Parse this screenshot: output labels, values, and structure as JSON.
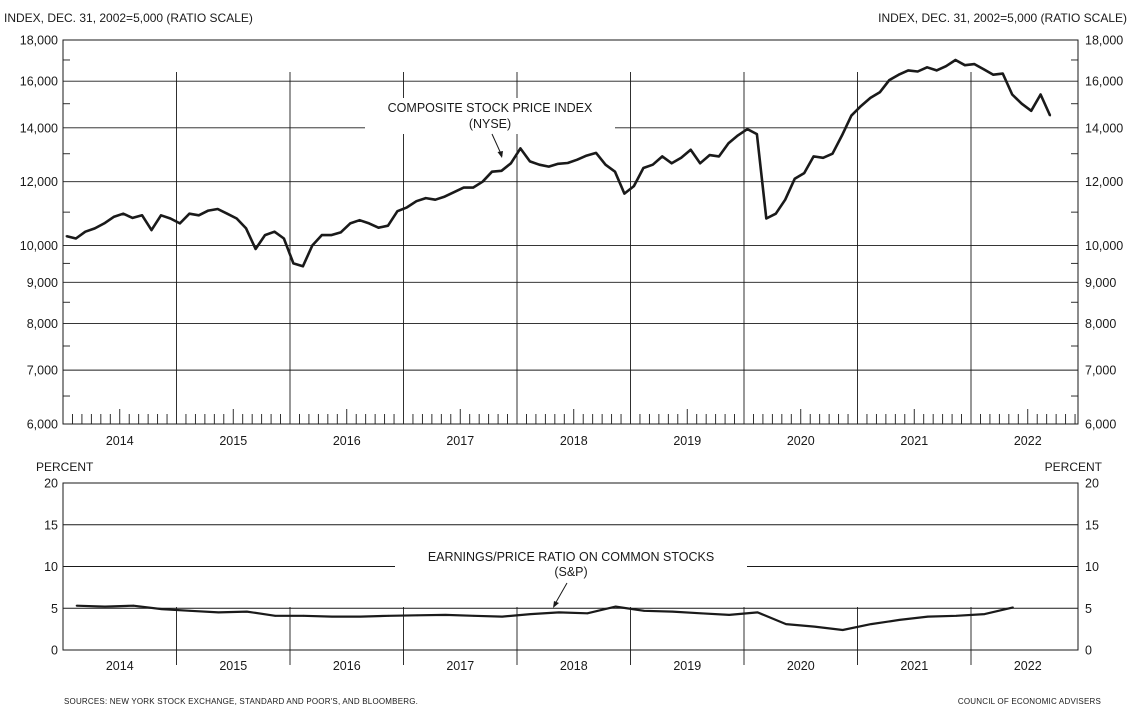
{
  "chart_data": [
    {
      "type": "line",
      "name": "top-panel",
      "axis_label_left": "INDEX, DEC. 31, 2002=5,000 (RATIO SCALE)",
      "axis_label_right": "INDEX, DEC. 31, 2002=5,000 (RATIO SCALE)",
      "scale": "log",
      "ylim": [
        6000,
        18000
      ],
      "y_ticks_labeled": [
        "6,000",
        "7,000",
        "8,000",
        "9,000",
        "10,000",
        "12,000",
        "14,000",
        "16,000",
        "18,000"
      ],
      "y_tick_values": [
        6000,
        7000,
        8000,
        9000,
        10000,
        12000,
        14000,
        16000,
        18000
      ],
      "x_years": [
        "2014",
        "2015",
        "2016",
        "2017",
        "2018",
        "2019",
        "2020",
        "2021",
        "2022"
      ],
      "annotation": {
        "line1": "COMPOSITE STOCK PRICE INDEX",
        "line2": "(NYSE)"
      },
      "series": [
        {
          "values": [
            10270,
            10200,
            10400,
            10500,
            10650,
            10850,
            10950,
            10820,
            10900,
            10450,
            10900,
            10800,
            10650,
            10950,
            10900,
            11050,
            11100,
            10950,
            10800,
            10500,
            9900,
            10300,
            10400,
            10200,
            9500,
            9420,
            10000,
            10300,
            10300,
            10380,
            10650,
            10750,
            10650,
            10520,
            10580,
            11030,
            11150,
            11350,
            11450,
            11400,
            11500,
            11650,
            11800,
            11800,
            12000,
            12350,
            12380,
            12650,
            13200,
            12720,
            12600,
            12530,
            12630,
            12660,
            12780,
            12930,
            13030,
            12600,
            12350,
            11600,
            11850,
            12480,
            12600,
            12900,
            12650,
            12850,
            13150,
            12650,
            12950,
            12900,
            13400,
            13700,
            13950,
            13750,
            10800,
            10950,
            11400,
            12100,
            12300,
            12900,
            12850,
            13000,
            13700,
            14500,
            14900,
            15250,
            15500,
            16050,
            16300,
            16500,
            16450,
            16650,
            16500,
            16700,
            17000,
            16750,
            16800,
            16550,
            16300,
            16350,
            15400,
            15000,
            14700,
            15400,
            14500
          ],
          "x_start": "2014-01",
          "step": "1 month"
        }
      ]
    },
    {
      "type": "line",
      "name": "bottom-panel",
      "axis_label_left": "PERCENT",
      "axis_label_right": "PERCENT",
      "ylim": [
        0,
        20
      ],
      "y_ticks_labeled": [
        "0",
        "5",
        "10",
        "15",
        "20"
      ],
      "y_tick_values": [
        0,
        5,
        10,
        15,
        20
      ],
      "x_years": [
        "2014",
        "2015",
        "2016",
        "2017",
        "2018",
        "2019",
        "2020",
        "2021",
        "2022"
      ],
      "annotation": {
        "line1": "EARNINGS/PRICE RATIO ON COMMON STOCKS",
        "line2": "(S&P)"
      },
      "series": [
        {
          "values": [
            5.3,
            5.2,
            5.3,
            4.9,
            4.7,
            4.5,
            4.6,
            4.1,
            4.1,
            4.0,
            4.0,
            4.1,
            4.15,
            4.2,
            4.1,
            4.0,
            4.3,
            4.5,
            4.4,
            5.2,
            4.7,
            4.6,
            4.4,
            4.2,
            4.5,
            3.1,
            2.8,
            2.4,
            3.1,
            3.6,
            4.0,
            4.1,
            4.3,
            5.1
          ],
          "x_start": "2014-Q1",
          "step": "1 quarter"
        }
      ]
    }
  ],
  "footer": {
    "sources": "SOURCES: NEW YORK STOCK EXCHANGE, STANDARD AND POOR'S, AND BLOOMBERG.",
    "credit": "COUNCIL OF ECONOMIC ADVISERS"
  }
}
